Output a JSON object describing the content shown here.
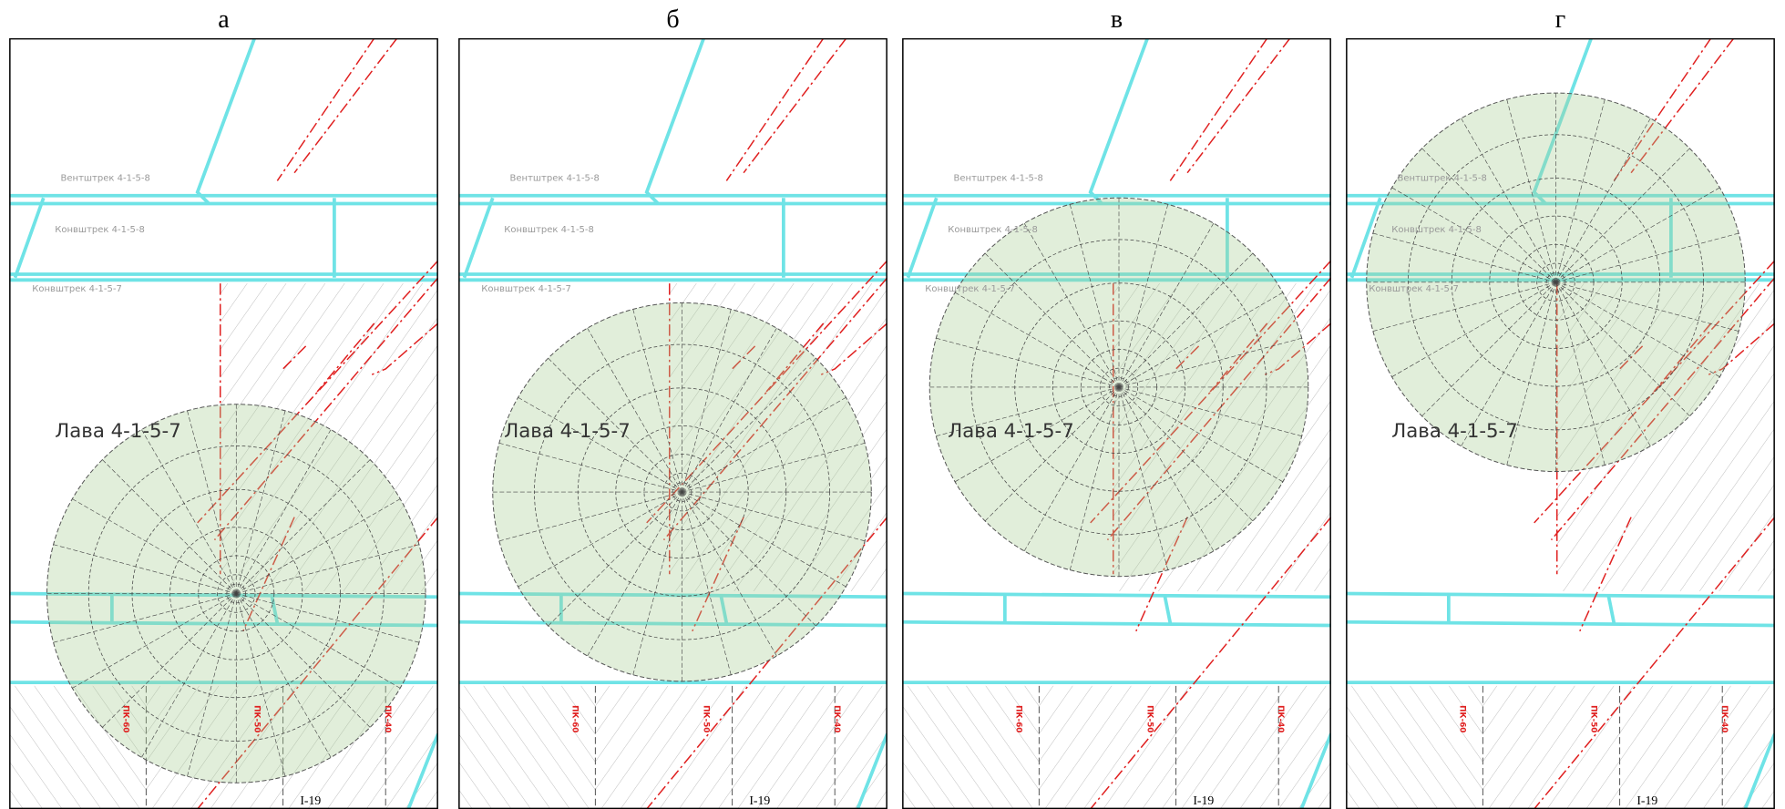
{
  "panels": [
    {
      "label": "а",
      "lava": "Лава 4-1-5-7",
      "drifts": [
        "Вентштрек 4-1-5-8",
        "Конвштрек 4-1-5-8",
        "Конвштрек 4-1-5-7"
      ],
      "pickets": [
        "ПК-60",
        "ПК-50",
        "ПК-40"
      ],
      "sheet": "I-19"
    },
    {
      "label": "б",
      "lava": "Лава 4-1-5-7",
      "drifts": [
        "Вентштрек 4-1-5-8",
        "Конвштрек 4-1-5-8",
        "Конвштрек 4-1-5-7"
      ],
      "pickets": [
        "ПК-60",
        "ПК-50",
        "ПК-40"
      ],
      "sheet": "I-19"
    },
    {
      "label": "в",
      "lava": "Лава 4-1-5-7",
      "drifts": [
        "Вентштрек 4-1-5-8",
        "Конвштрек 4-1-5-8",
        "Конвштрек 4-1-5-7"
      ],
      "pickets": [
        "ПК-60",
        "ПК-50",
        "ПК-40"
      ],
      "sheet": "I-19"
    },
    {
      "label": "г",
      "lava": "Лава 4-1-5-7",
      "drifts": [
        "Вентштрек 4-1-5-8",
        "Конвштрек 4-1-5-8",
        "Конвштрек 4-1-5-7"
      ],
      "pickets": [
        "ПК-60",
        "ПК-50",
        "ПК-40"
      ],
      "sheet": "I-19"
    }
  ]
}
